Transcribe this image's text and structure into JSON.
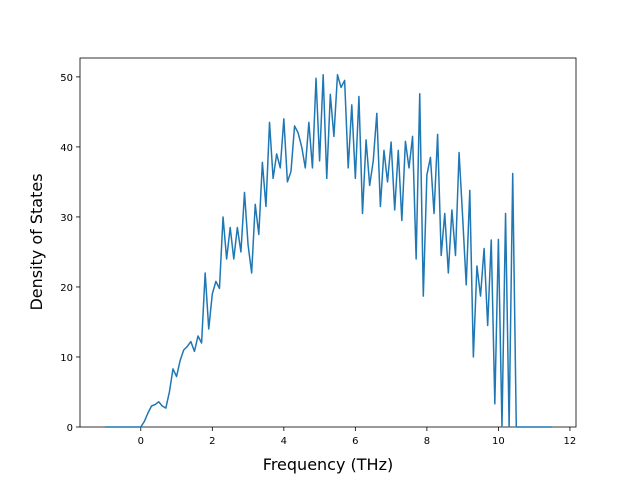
{
  "chart_data": {
    "type": "line",
    "xlabel": "Frequency (THz)",
    "ylabel": "Density of States",
    "xlim": [
      -1.7,
      12.17
    ],
    "ylim": [
      0,
      52.7
    ],
    "xticks": [
      0,
      2,
      4,
      6,
      8,
      10,
      12
    ],
    "yticks": [
      0,
      10,
      20,
      30,
      40,
      50
    ],
    "x": [
      -1.0,
      -0.9,
      -0.8,
      -0.7,
      -0.6,
      -0.5,
      -0.4,
      -0.3,
      -0.2,
      -0.1,
      0.0,
      0.1,
      0.2,
      0.3,
      0.4,
      0.5,
      0.6,
      0.7,
      0.8,
      0.9,
      1.0,
      1.1,
      1.2,
      1.3,
      1.4,
      1.5,
      1.6,
      1.7,
      1.8,
      1.9,
      2.0,
      2.1,
      2.2,
      2.3,
      2.4,
      2.5,
      2.6,
      2.7,
      2.8,
      2.9,
      3.0,
      3.1,
      3.2,
      3.3,
      3.4,
      3.5,
      3.6,
      3.7,
      3.8,
      3.9,
      4.0,
      4.1,
      4.2,
      4.3,
      4.4,
      4.5,
      4.6,
      4.7,
      4.8,
      4.9,
      5.0,
      5.1,
      5.2,
      5.3,
      5.4,
      5.5,
      5.6,
      5.7,
      5.8,
      5.9,
      6.0,
      6.1,
      6.2,
      6.3,
      6.4,
      6.5,
      6.6,
      6.7,
      6.8,
      6.9,
      7.0,
      7.1,
      7.2,
      7.3,
      7.4,
      7.5,
      7.6,
      7.7,
      7.8,
      7.9,
      8.0,
      8.1,
      8.2,
      8.3,
      8.4,
      8.5,
      8.6,
      8.7,
      8.8,
      8.9,
      9.0,
      9.1,
      9.2,
      9.3,
      9.4,
      9.5,
      9.6,
      9.7,
      9.8,
      9.9,
      10.0,
      10.1,
      10.2,
      10.3,
      10.4,
      10.5,
      10.6,
      10.7,
      10.8,
      10.9,
      11.0,
      11.1,
      11.2,
      11.3,
      11.4,
      11.5
    ],
    "series": [
      {
        "color": "#1f77b4",
        "values": [
          0,
          0,
          0,
          0,
          0,
          0,
          0,
          0,
          0,
          0,
          0,
          0.8,
          2,
          3,
          3.2,
          3.6,
          3.0,
          2.7,
          5,
          8.3,
          7.2,
          9.5,
          11,
          11.5,
          12.2,
          10.8,
          13,
          12,
          22,
          14,
          19,
          20.8,
          19.8,
          30,
          24,
          28.5,
          24,
          28.5,
          25,
          33.5,
          26,
          22,
          31.8,
          27.5,
          37.8,
          31.5,
          43.5,
          35.5,
          39,
          37,
          44,
          35,
          36.5,
          43,
          42,
          40,
          37,
          43.5,
          37,
          49.8,
          38,
          50.3,
          35.5,
          47.5,
          41.5,
          50.3,
          48.5,
          49.5,
          37,
          46,
          35.5,
          47.2,
          30.5,
          41,
          34.5,
          38,
          44.8,
          31.5,
          39.5,
          35,
          40.7,
          31,
          39.5,
          29.5,
          40.8,
          37,
          41.5,
          24,
          47.6,
          18.7,
          36,
          38.5,
          30.5,
          41.8,
          24.5,
          30.5,
          22,
          31,
          24.5,
          39.2,
          30,
          20.3,
          33.8,
          10,
          23,
          18.7,
          25.5,
          14.5,
          26.7,
          3.3,
          26.8,
          0,
          30.5,
          0,
          36.2,
          0,
          0,
          0,
          0,
          0,
          0,
          0,
          0,
          0,
          0,
          0
        ]
      }
    ]
  }
}
